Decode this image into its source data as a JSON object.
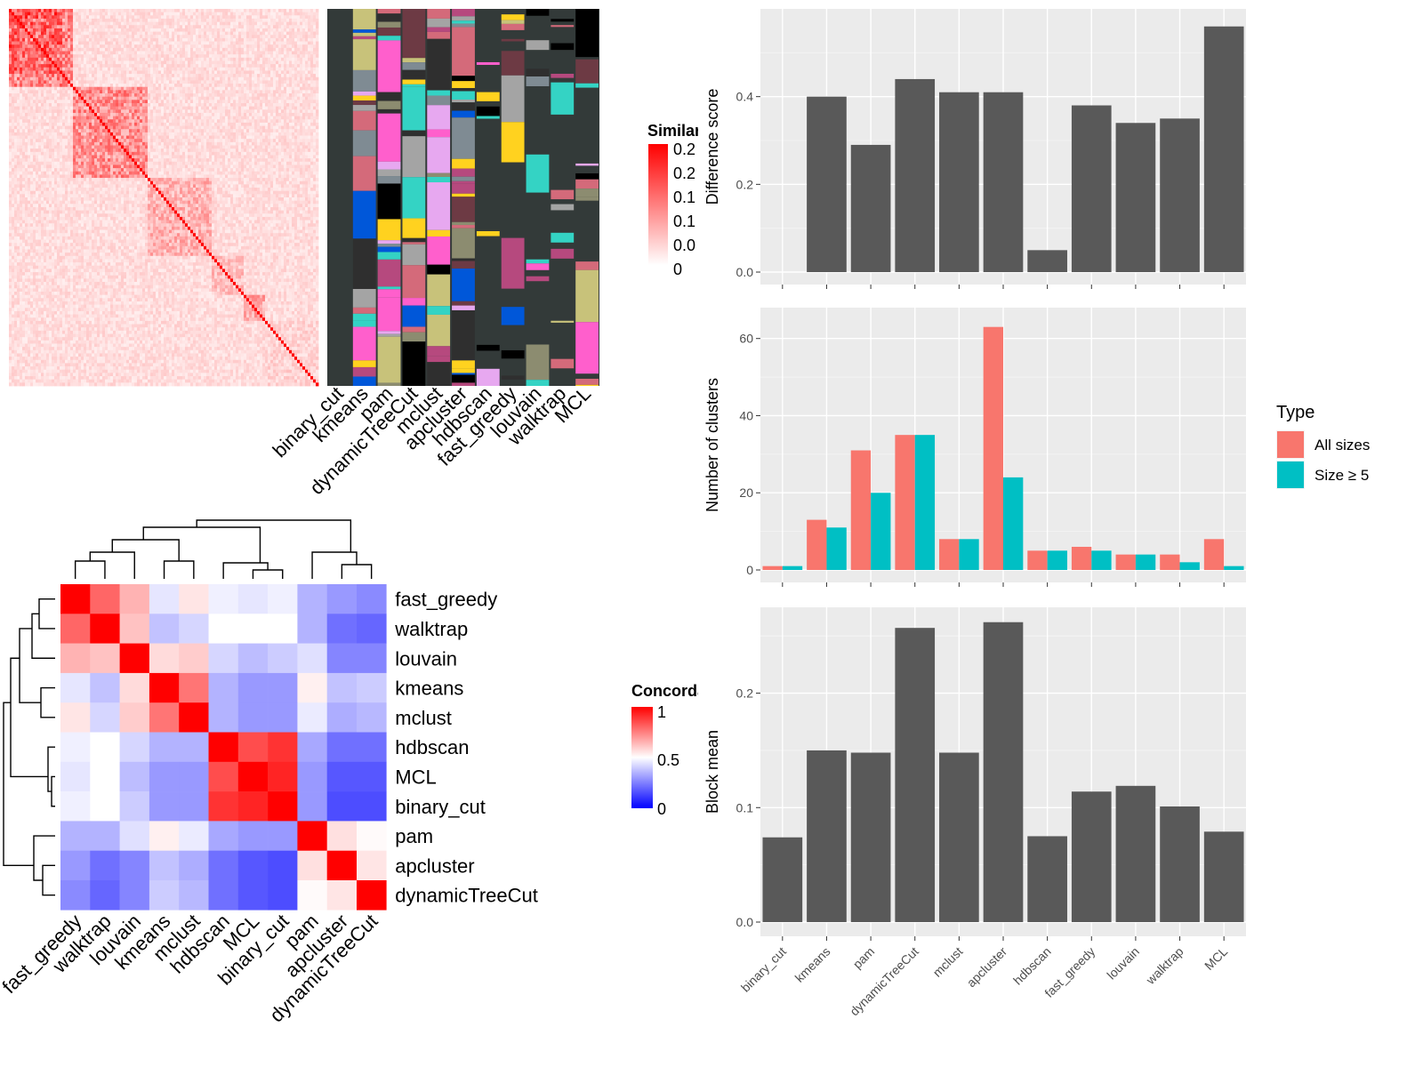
{
  "colors": {
    "panel_bg": "#ebebeb",
    "bar_gray": "#595959",
    "all_sizes": "#f8766d",
    "size_ge_5": "#00bfc4",
    "sim_high": "#ff0000",
    "sim_low": "#ffffff",
    "conc_high": "#ff0000",
    "conc_mid": "#ffffff",
    "conc_low": "#0000ff",
    "annot_bg": "#333a39"
  },
  "chart_data": [
    {
      "id": "similarity-heatmap",
      "type": "heatmap",
      "legend_title": "Similarity",
      "legend_ticks": [
        "0.2",
        "0.2",
        "0.1",
        "0.1",
        "0.0",
        "0"
      ],
      "annotation_tracks": [
        "binary_cut",
        "kmeans",
        "pam",
        "dynamicTreeCut",
        "mclust",
        "apcluster",
        "hdbscan",
        "fast_greedy",
        "louvain",
        "walktrap",
        "MCL"
      ]
    },
    {
      "id": "concordance-heatmap",
      "type": "heatmap",
      "legend_title": "Concordance",
      "legend_ticks": [
        "1",
        "0.5",
        "0"
      ],
      "rows": [
        "fast_greedy",
        "walktrap",
        "louvain",
        "kmeans",
        "mclust",
        "hdbscan",
        "MCL",
        "binary_cut",
        "pam",
        "apcluster",
        "dynamicTreeCut"
      ],
      "columns": [
        "fast_greedy",
        "walktrap",
        "louvain",
        "kmeans",
        "mclust",
        "hdbscan",
        "MCL",
        "binary_cut",
        "pam",
        "apcluster",
        "dynamicTreeCut"
      ],
      "values": [
        [
          1.0,
          0.8,
          0.65,
          0.45,
          0.55,
          0.47,
          0.45,
          0.47,
          0.35,
          0.3,
          0.27
        ],
        [
          0.8,
          1.0,
          0.62,
          0.38,
          0.42,
          0.5,
          0.5,
          0.5,
          0.35,
          0.22,
          0.2
        ],
        [
          0.65,
          0.62,
          1.0,
          0.57,
          0.6,
          0.42,
          0.37,
          0.4,
          0.44,
          0.26,
          0.26
        ],
        [
          0.45,
          0.38,
          0.57,
          1.0,
          0.77,
          0.35,
          0.3,
          0.3,
          0.53,
          0.38,
          0.4
        ],
        [
          0.55,
          0.42,
          0.6,
          0.77,
          1.0,
          0.35,
          0.3,
          0.3,
          0.46,
          0.34,
          0.36
        ],
        [
          0.47,
          0.5,
          0.42,
          0.35,
          0.35,
          1.0,
          0.85,
          0.9,
          0.33,
          0.22,
          0.22
        ],
        [
          0.45,
          0.5,
          0.37,
          0.3,
          0.3,
          0.85,
          1.0,
          0.93,
          0.3,
          0.17,
          0.17
        ],
        [
          0.47,
          0.5,
          0.4,
          0.3,
          0.3,
          0.9,
          0.93,
          1.0,
          0.3,
          0.15,
          0.15
        ],
        [
          0.35,
          0.35,
          0.44,
          0.53,
          0.46,
          0.33,
          0.3,
          0.3,
          1.0,
          0.56,
          0.51
        ],
        [
          0.3,
          0.22,
          0.26,
          0.38,
          0.34,
          0.22,
          0.17,
          0.15,
          0.56,
          1.0,
          0.55
        ],
        [
          0.27,
          0.2,
          0.26,
          0.4,
          0.36,
          0.22,
          0.17,
          0.15,
          0.51,
          0.55,
          1.0
        ]
      ]
    },
    {
      "id": "difference-score",
      "type": "bar",
      "categories": [
        "binary_cut",
        "kmeans",
        "pam",
        "dynamicTreeCut",
        "mclust",
        "apcluster",
        "hdbscan",
        "fast_greedy",
        "louvain",
        "walktrap",
        "MCL"
      ],
      "values": [
        0.0,
        0.4,
        0.29,
        0.44,
        0.41,
        0.41,
        0.05,
        0.38,
        0.34,
        0.35,
        0.56
      ],
      "ylabel": "Difference score",
      "ylim": [
        0,
        0.6
      ],
      "yticks": [
        "0.0",
        "0.2",
        "0.4"
      ]
    },
    {
      "id": "number-of-clusters",
      "type": "bar",
      "categories": [
        "binary_cut",
        "kmeans",
        "pam",
        "dynamicTreeCut",
        "mclust",
        "apcluster",
        "hdbscan",
        "fast_greedy",
        "louvain",
        "walktrap",
        "MCL"
      ],
      "series": [
        {
          "name": "All sizes",
          "values": [
            1,
            13,
            31,
            35,
            8,
            63,
            5,
            6,
            4,
            4,
            8
          ]
        },
        {
          "name": "Size ≥ 5",
          "values": [
            1,
            11,
            20,
            35,
            8,
            24,
            5,
            5,
            4,
            2,
            1
          ]
        }
      ],
      "ylabel": "Number of clusters",
      "ylim": [
        0,
        68
      ],
      "yticks": [
        "0",
        "20",
        "40",
        "60"
      ],
      "legend_title": "Type",
      "legend_position": "right"
    },
    {
      "id": "block-mean",
      "type": "bar",
      "categories": [
        "binary_cut",
        "kmeans",
        "pam",
        "dynamicTreeCut",
        "mclust",
        "apcluster",
        "hdbscan",
        "fast_greedy",
        "louvain",
        "walktrap",
        "MCL"
      ],
      "values": [
        0.074,
        0.15,
        0.148,
        0.257,
        0.148,
        0.262,
        0.075,
        0.114,
        0.119,
        0.101,
        0.079
      ],
      "ylabel": "Block mean",
      "ylim": [
        0,
        0.275
      ],
      "yticks": [
        "0.0",
        "0.1",
        "0.2"
      ]
    }
  ]
}
